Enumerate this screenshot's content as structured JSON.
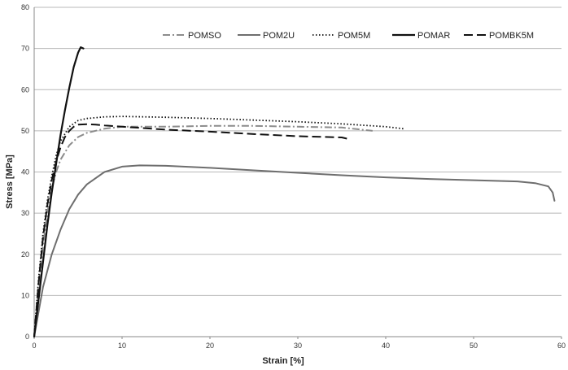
{
  "chart_data": {
    "type": "line",
    "xlabel": "Strain [%]",
    "ylabel": "Stress [MPa]",
    "xlim": [
      0,
      60
    ],
    "ylim": [
      0,
      80
    ],
    "xticks": [
      "0",
      "10",
      "20",
      "30",
      "40",
      "50",
      "60"
    ],
    "yticks": [
      "0",
      "10",
      "20",
      "30",
      "40",
      "50",
      "60",
      "70",
      "80"
    ],
    "grid": "horizontal",
    "legend_position": "top-right",
    "series": [
      {
        "name": "POMSO",
        "color": "#8c8c8c",
        "dash": "dashdot",
        "x": [
          0,
          0.5,
          1,
          1.5,
          2,
          2.5,
          3,
          4,
          5,
          6,
          8,
          10,
          15,
          20,
          25,
          30,
          35,
          38.5
        ],
        "y": [
          0,
          12,
          22,
          30,
          36,
          40,
          43,
          46.5,
          48.5,
          49.5,
          50.5,
          51,
          51,
          51.2,
          51.2,
          51,
          50.8,
          50
        ]
      },
      {
        "name": "POM2U",
        "color": "#6e6e6e",
        "dash": "solid",
        "x": [
          0,
          0.5,
          1,
          2,
          3,
          4,
          5,
          6,
          8,
          10,
          12,
          15,
          20,
          25,
          30,
          35,
          40,
          45,
          50,
          55,
          57,
          58.5,
          59,
          59.2
        ],
        "y": [
          0,
          6,
          12,
          20,
          26,
          31,
          34.5,
          37,
          40,
          41.3,
          41.6,
          41.5,
          41,
          40.4,
          39.8,
          39.2,
          38.7,
          38.3,
          38,
          37.7,
          37.3,
          36.5,
          35,
          33
        ]
      },
      {
        "name": "POM5M",
        "color": "#111111",
        "dash": "dotted",
        "x": [
          0,
          0.5,
          1,
          1.5,
          2,
          2.5,
          3,
          4,
          5,
          6,
          8,
          10,
          15,
          20,
          25,
          30,
          35,
          40,
          42
        ],
        "y": [
          0,
          14,
          25,
          33,
          39,
          44,
          47.5,
          51,
          52.5,
          53,
          53.4,
          53.5,
          53.3,
          53,
          52.6,
          52.2,
          51.7,
          51,
          50.5
        ]
      },
      {
        "name": "POMAR",
        "color": "#111111",
        "dash": "solid",
        "x": [
          0,
          0.5,
          1,
          1.5,
          2,
          2.5,
          3,
          3.5,
          4,
          4.5,
          5,
          5.3,
          5.6
        ],
        "y": [
          0,
          9,
          18,
          27,
          35,
          42,
          49,
          55,
          60.5,
          65.5,
          69,
          70.3,
          70
        ]
      },
      {
        "name": "POMBK5M",
        "color": "#111111",
        "dash": "longdash",
        "x": [
          0,
          0.5,
          1,
          1.5,
          2,
          2.5,
          3,
          3.5,
          4,
          4.5,
          5,
          6,
          7,
          8,
          10,
          15,
          20,
          25,
          30,
          35,
          35.8
        ],
        "y": [
          0,
          13,
          24,
          32,
          38,
          42.5,
          46,
          48.5,
          50,
          51,
          51.5,
          51.6,
          51.5,
          51.3,
          51,
          50.3,
          49.8,
          49.2,
          48.7,
          48.4,
          48
        ]
      }
    ]
  }
}
